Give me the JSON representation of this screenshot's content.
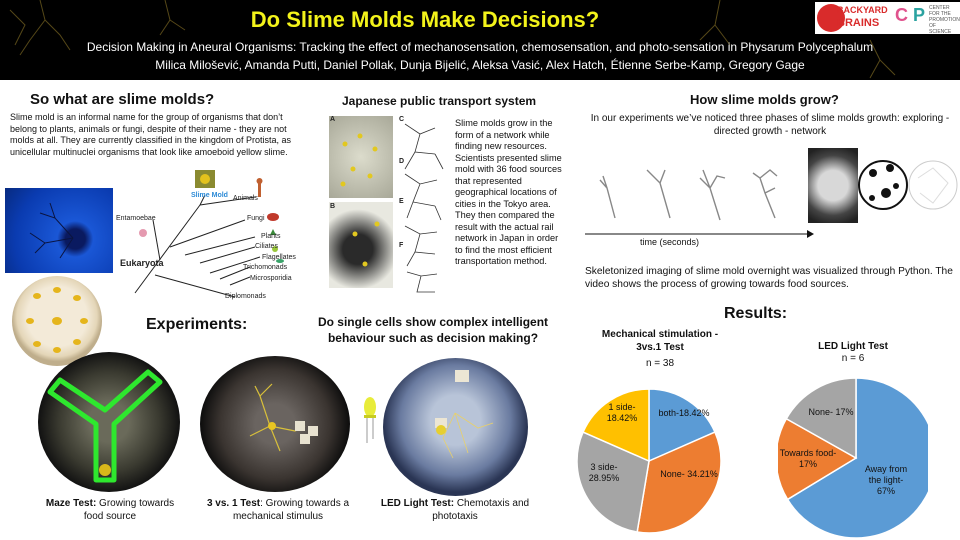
{
  "header": {
    "title": "Do Slime Molds Make Decisions?",
    "subtitle": "Decision Making in Aneural Organisms: Tracking the effect of mechanosensation, chemosensation, and photo-sensation in Physarum Polycephalum",
    "authors": "Milica Milošević, Amanda Putti, Daniel Pollak, Dunja Bijelić, Aleksa Vasić, Alex Hatch, Étienne Serbe-Kamp, Gregory Gage",
    "logo_bb_line1": "BACKYARD",
    "logo_bb_line2": "BRAINS",
    "logo_cpn_text": "CENTER FOR THE PROMOTION OF SCIENCE"
  },
  "what": {
    "heading": "So what are slime molds?",
    "text": "Slime mold is an informal name for the group of organisms that don’t belong to plants, animals or fungi, despite of their name - they are not molds at all. They are currently classified in the kingdom of Protista, as unicellular multinuclei organisms that look like amoeboid yellow slime.",
    "tree": {
      "slime_mold": "Slime Mold",
      "animals": "Animals",
      "entamoebae": "Entamoebae",
      "fungi": "Fungi",
      "plants": "Plants",
      "ciliates": "Ciliates",
      "flagellates": "Flagellates",
      "trichomonads": "Trichomonads",
      "microsporidia": "Microsporidia",
      "diplomonads": "Diplomonads",
      "eukaryota": "Eukaryota"
    }
  },
  "transport": {
    "heading": "Japanese public transport system",
    "text": "Slime molds grow in the form of a network while finding new resources. Scientists presented slime mold with 36 food sources that represented geographical locations of cities in the Tokyo area. They then compared the result with the actual rail network in Japan in order to find the most efficient transportation method.",
    "panel_labels": [
      "A",
      "B",
      "C",
      "D",
      "E",
      "F"
    ]
  },
  "grow": {
    "heading": "How slime molds grow?",
    "text": "In our experiments we’ve noticed three phases of slime molds  growth: exploring - directed growth - network",
    "time_label": "time (seconds)",
    "note": "Skeletonized imaging of slime mold  overnight was visualized through Python. The video shows the process of growing towards food sources."
  },
  "experiments": {
    "heading": "Experiments:",
    "question": "Do single cells show complex intelligent behaviour such as decision making?",
    "maze_bold": "Maze Test:",
    "maze_rest": " Growing towards food source",
    "three_bold": "3 vs. 1 Test",
    "three_rest": ": Growing towards a mechanical stimulus",
    "led_bold": "LED Light Test:",
    "led_rest": " Chemotaxis and phototaxis"
  },
  "results": {
    "heading": "Results:"
  },
  "colors": {
    "blue": "#5b9bd5",
    "orange": "#ed7d31",
    "gray": "#a5a5a5",
    "yellow": "#ffc000",
    "title_yellow": "#f3f31a"
  },
  "chart_data": [
    {
      "type": "pie",
      "title": "Mechanical stimulation - 3vs.1 Test",
      "n_label": "n = 38",
      "slices": [
        {
          "label": "both-18.42%",
          "value": 18.42,
          "color": "#5b9bd5"
        },
        {
          "label": "None- 34.21%",
          "value": 34.21,
          "color": "#ed7d31"
        },
        {
          "label": "3 side- 28.95%",
          "value": 28.95,
          "color": "#a5a5a5"
        },
        {
          "label": "1 side- 18.42%",
          "value": 18.42,
          "color": "#ffc000"
        }
      ]
    },
    {
      "type": "pie",
      "title": "LED Light Test",
      "n_label": "n = 6",
      "slices": [
        {
          "label": "Away from the light- 67%",
          "value": 67,
          "color": "#5b9bd5"
        },
        {
          "label": "Towards food- 17%",
          "value": 17,
          "color": "#ed7d31"
        },
        {
          "label": "None- 17%",
          "value": 17,
          "color": "#a5a5a5"
        }
      ]
    }
  ]
}
